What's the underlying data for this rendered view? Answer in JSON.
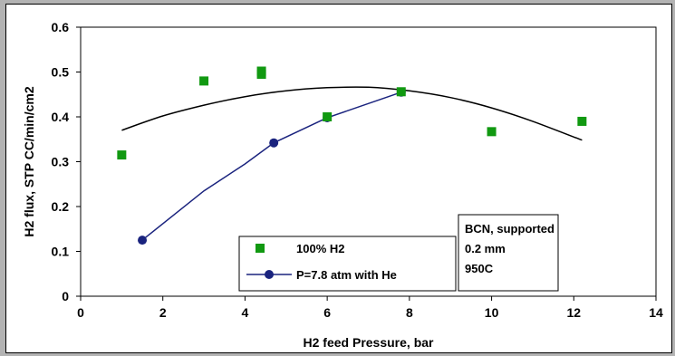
{
  "chart_data": {
    "type": "scatter",
    "xlabel": "H2 feed Pressure, bar",
    "ylabel": "H2 flux, STP CC/min/cm2",
    "xlim": [
      0,
      14
    ],
    "ylim": [
      0,
      0.6
    ],
    "x_ticks": [
      "0",
      "2",
      "4",
      "6",
      "8",
      "10",
      "12",
      "14"
    ],
    "y_ticks": [
      "0",
      "0.1",
      "0.2",
      "0.3",
      "0.4",
      "0.5",
      "0.6"
    ],
    "grid": false,
    "legend_position": "bottom-center",
    "series": [
      {
        "name": "100% H2",
        "style": "markers",
        "marker": "square",
        "color": "#119911",
        "points": [
          [
            1.0,
            0.315
          ],
          [
            3.0,
            0.48
          ],
          [
            4.4,
            0.495
          ],
          [
            4.4,
            0.502
          ],
          [
            6.0,
            0.4
          ],
          [
            7.8,
            0.456
          ],
          [
            10.0,
            0.367
          ],
          [
            12.2,
            0.39
          ]
        ]
      },
      {
        "name": "P=7.8 atm with He",
        "style": "line-markers",
        "marker": "circle",
        "color": "#1a237e",
        "points": [
          [
            1.5,
            0.125
          ],
          [
            3.0,
            0.235
          ],
          [
            4.0,
            0.295
          ],
          [
            4.7,
            0.342
          ],
          [
            6.0,
            0.398
          ],
          [
            7.8,
            0.455
          ]
        ]
      },
      {
        "name": "",
        "style": "trendline",
        "color": "#000000",
        "points": [
          [
            1.0,
            0.37
          ],
          [
            2.0,
            0.402
          ],
          [
            3.0,
            0.426
          ],
          [
            4.0,
            0.445
          ],
          [
            5.0,
            0.458
          ],
          [
            6.0,
            0.465
          ],
          [
            7.0,
            0.466
          ],
          [
            8.0,
            0.458
          ],
          [
            9.0,
            0.443
          ],
          [
            10.0,
            0.42
          ],
          [
            11.0,
            0.39
          ],
          [
            12.2,
            0.348
          ]
        ]
      }
    ],
    "annotation": [
      "BCN, supported",
      "0.2 mm",
      "950C"
    ]
  }
}
